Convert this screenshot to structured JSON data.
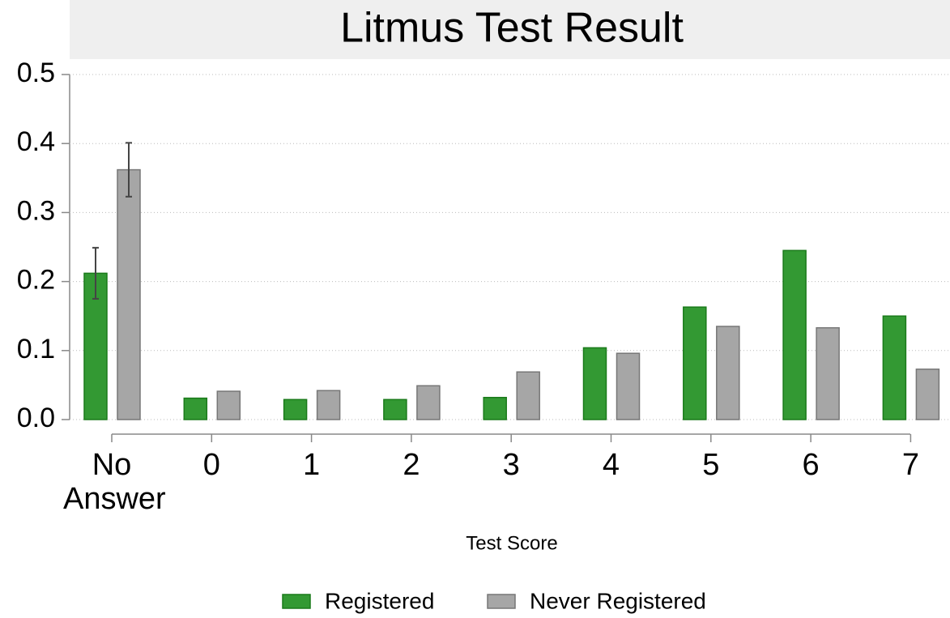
{
  "chart_data": {
    "type": "bar",
    "title": "Litmus Test Result",
    "xlabel": "Test Score",
    "categories": [
      "No Answer",
      "0",
      "1",
      "2",
      "3",
      "4",
      "5",
      "6",
      "7"
    ],
    "series": [
      {
        "name": "Registered",
        "color": "#339933",
        "values": [
          0.212,
          0.031,
          0.029,
          0.029,
          0.032,
          0.104,
          0.163,
          0.245,
          0.15
        ],
        "errors": [
          0.037,
          null,
          null,
          null,
          null,
          null,
          null,
          null,
          null
        ]
      },
      {
        "name": "Never Registered",
        "color": "#a6a6a6",
        "values": [
          0.362,
          0.041,
          0.042,
          0.049,
          0.069,
          0.096,
          0.135,
          0.133,
          0.073
        ],
        "errors": [
          0.039,
          null,
          null,
          null,
          null,
          null,
          null,
          null,
          null
        ]
      }
    ],
    "ylim": [
      0,
      0.5
    ],
    "yticks": [
      {
        "value": 0,
        "label": "0.0"
      },
      0.1,
      0.2,
      0.3,
      0.4,
      0.5
    ],
    "grid": true
  }
}
